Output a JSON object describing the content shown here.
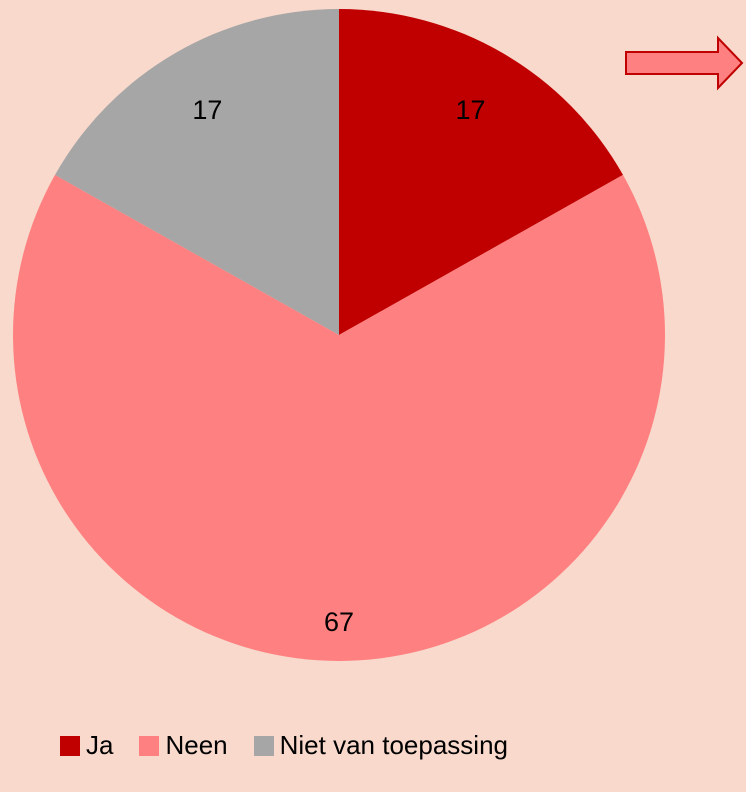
{
  "chart_data": {
    "type": "pie",
    "categories": [
      "Ja",
      "Neen",
      "Niet van toepassing"
    ],
    "values": [
      17,
      67,
      17
    ],
    "colors": [
      "#c00000",
      "#ff8080",
      "#a6a6a6"
    ],
    "data_labels": [
      "17",
      "67",
      "17"
    ],
    "legend_position": "bottom-left",
    "start_angle": "top, clockwise"
  },
  "decoration": {
    "arrow_icon": "right-arrow-icon",
    "arrow_fill": "#ff8080",
    "arrow_stroke": "#c00000"
  }
}
